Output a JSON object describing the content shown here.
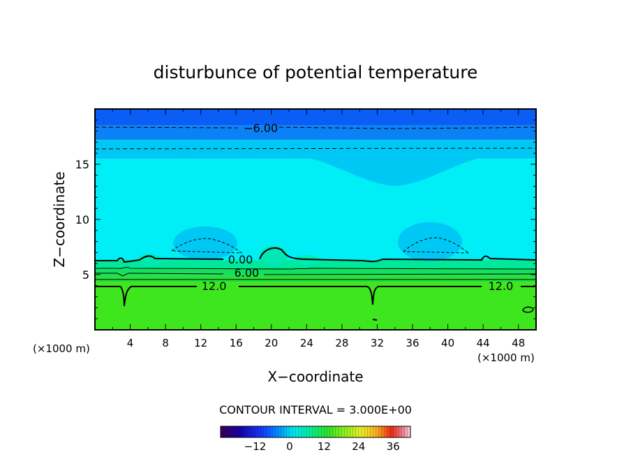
{
  "chart_data": {
    "type": "heatmap",
    "title": "disturbunce of potential temperature",
    "xlabel": "X−coordinate",
    "ylabel": "Z−coordinate",
    "x_unit_left": "(×1000 m)",
    "x_unit_right": "(×1000 m)",
    "xlim": [
      0,
      50
    ],
    "ylim": [
      0,
      20
    ],
    "x_ticks": [
      4,
      8,
      12,
      16,
      20,
      24,
      28,
      32,
      36,
      40,
      44,
      48
    ],
    "y_ticks": [
      5,
      10,
      15
    ],
    "contour_interval_label": "CONTOUR INTERVAL = 3.000E+00",
    "contour_labels": [
      {
        "text": "−6.00",
        "x": 18.8,
        "z": 18.3
      },
      {
        "text": "0.00",
        "x": 16.5,
        "z": 6.4
      },
      {
        "text": "6.00",
        "x": 17.2,
        "z": 5.2
      },
      {
        "text": "12.0",
        "x": 13.5,
        "z": 4.0
      },
      {
        "text": "12.0",
        "x": 46.0,
        "z": 4.0
      }
    ],
    "colorbar": {
      "range": [
        -24,
        42
      ],
      "tick_values": [
        -12,
        0,
        12,
        24,
        36
      ],
      "tick_labels": [
        "−12",
        "0",
        "12",
        "24",
        "36"
      ]
    },
    "bands": [
      {
        "z_from": 18.5,
        "z_to": 20,
        "value": -9,
        "color": "#0a5ef5"
      },
      {
        "z_from": 17.2,
        "z_to": 18.5,
        "value": -6,
        "color": "#0a82f5"
      },
      {
        "z_from": 15.5,
        "z_to": 17.2,
        "value": -3,
        "color": "#00c8f5"
      },
      {
        "z_from": 6.3,
        "z_to": 15.5,
        "value": 0,
        "color": "#00eef5"
      },
      {
        "z_from": 5.5,
        "z_to": 6.3,
        "value": 3,
        "color": "#00e89a"
      },
      {
        "z_from": 4.9,
        "z_to": 5.5,
        "value": 6,
        "color": "#14e05a"
      },
      {
        "z_from": 4.3,
        "z_to": 4.9,
        "value": 9,
        "color": "#28e03c"
      },
      {
        "z_from": 0,
        "z_to": 4.3,
        "value": 12,
        "color": "#3ee61e"
      }
    ],
    "features": {
      "dip_wells": [
        {
          "x": 3.4,
          "z_bottom": 2.2
        },
        {
          "x": 31.5,
          "z_bottom": 2.4
        }
      ],
      "cold_blobs": [
        {
          "x_center": 13,
          "z_center": 8.3
        },
        {
          "x_center": 38.5,
          "z_center": 8.3
        }
      ],
      "small_loop": {
        "x": 49.2,
        "z": 1.9
      }
    }
  }
}
